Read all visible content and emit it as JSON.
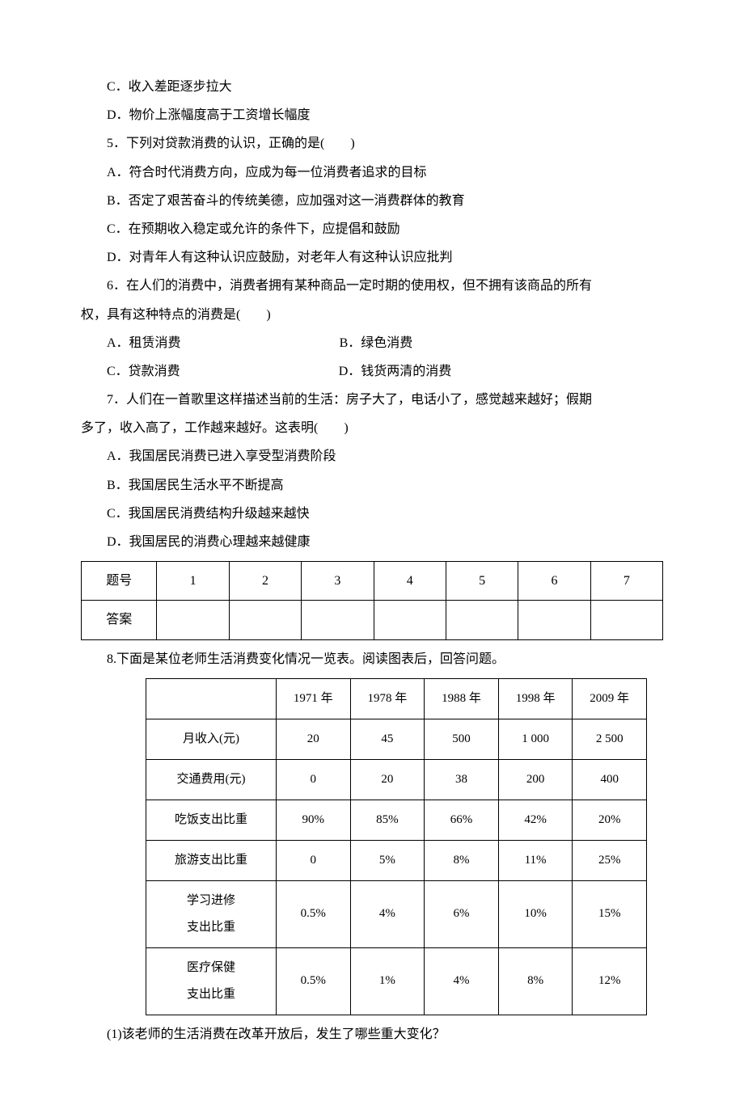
{
  "lines": {
    "optC4": "C．收入差距逐步拉大",
    "optD4": "D．物价上涨幅度高于工资增长幅度",
    "q5": "5．下列对贷款消费的认识，正确的是(　　)",
    "q5A": "A．符合时代消费方向，应成为每一位消费者追求的目标",
    "q5B": "B．否定了艰苦奋斗的传统美德，应加强对这一消费群体的教育",
    "q5C": "C．在预期收入稳定或允许的条件下，应提倡和鼓励",
    "q5D": "D．对青年人有这种认识应鼓励，对老年人有这种认识应批判",
    "q6a": "6．在人们的消费中，消费者拥有某种商品一定时期的使用权，但不拥有该商品的所有",
    "q6b": "权，具有这种特点的消费是(　　)",
    "q6A": "A．租赁消费",
    "q6B": "B．绿色消费",
    "q6C": "C．贷款消费",
    "q6D": "D．钱货两清的消费",
    "q7a": "7．人们在一首歌里这样描述当前的生活：房子大了，电话小了，感觉越来越好；假期",
    "q7b": "多了，收入高了，工作越来越好。这表明(　　)",
    "q7A": "A．我国居民消费已进入享受型消费阶段",
    "q7B": "B．我国居民生活水平不断提高",
    "q7C": "C．我国居民消费结构升级越来越快",
    "q7D": "D．我国居民的消费心理越来越健康",
    "q8intro": "8.下面是某位老师生活消费变化情况一览表。阅读图表后，回答问题。",
    "q8sub1": "(1)该老师的生活消费在改革开放后，发生了哪些重大变化？"
  },
  "answerGrid": {
    "headerLabel": "题号",
    "answerLabel": "答案",
    "cols": [
      "1",
      "2",
      "3",
      "4",
      "5",
      "6",
      "7"
    ]
  },
  "dataTable": {
    "yearHeaders": [
      "1971 年",
      "1978 年",
      "1988 年",
      "1998 年",
      "2009 年"
    ],
    "rows": [
      {
        "label": "月收入(元)",
        "cells": [
          "20",
          "45",
          "500",
          "1 000",
          "2 500"
        ]
      },
      {
        "label": "交通费用(元)",
        "cells": [
          "0",
          "20",
          "38",
          "200",
          "400"
        ]
      },
      {
        "label": "吃饭支出比重",
        "cells": [
          "90%",
          "85%",
          "66%",
          "42%",
          "20%"
        ]
      },
      {
        "label": "旅游支出比重",
        "cells": [
          "0",
          "5%",
          "8%",
          "11%",
          "25%"
        ]
      },
      {
        "label": "学习进修<br>支出比重",
        "cells": [
          "0.5%",
          "4%",
          "6%",
          "10%",
          "15%"
        ]
      },
      {
        "label": "医疗保健<br>支出比重",
        "cells": [
          "0.5%",
          "1%",
          "4%",
          "8%",
          "12%"
        ]
      }
    ]
  },
  "style": {
    "background": "#ffffff",
    "textColor": "#000000",
    "borderColor": "#000000",
    "bodyFontSize": 16,
    "tableFontSize": 15,
    "pageWidth": 920,
    "pageHeight": 1302
  }
}
